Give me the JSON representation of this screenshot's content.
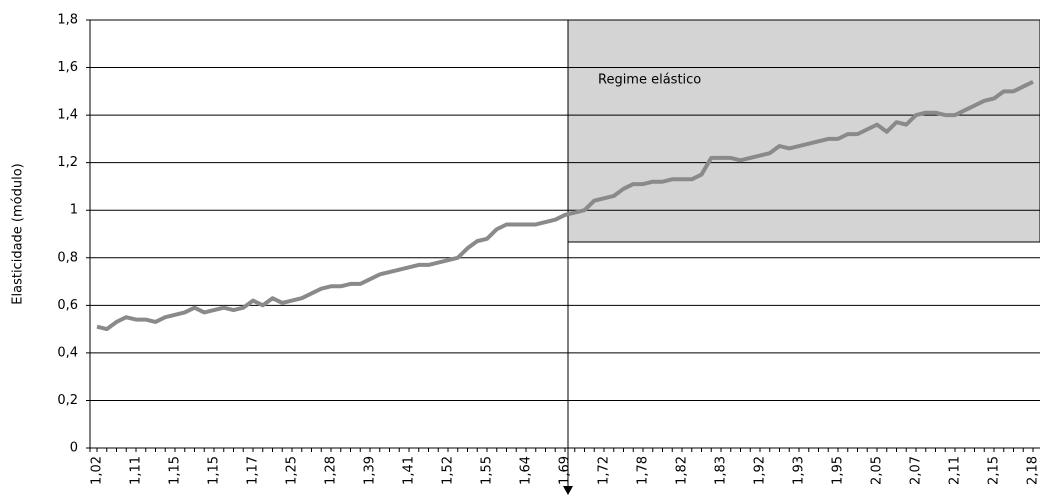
{
  "chart_data": {
    "type": "line",
    "ylabel": "Elasticidade (módulo)",
    "annotation": "Regime elástico",
    "color": "#8a8a8a",
    "categories": [
      "1,02",
      null,
      null,
      null,
      "1,11",
      null,
      null,
      null,
      "1,15",
      null,
      null,
      null,
      "1,15",
      null,
      null,
      null,
      "1,17",
      null,
      null,
      null,
      "1,25",
      null,
      null,
      null,
      "1,28",
      null,
      null,
      null,
      "1,39",
      null,
      null,
      null,
      "1,41",
      null,
      null,
      null,
      "1,52",
      null,
      null,
      null,
      "1,55",
      null,
      null,
      null,
      "1,64",
      null,
      null,
      null,
      "1,69",
      null,
      null,
      null,
      "1,72",
      null,
      null,
      null,
      "1,78",
      null,
      null,
      null,
      "1,82",
      null,
      null,
      null,
      "1,83",
      null,
      null,
      null,
      "1,92",
      null,
      null,
      null,
      "1,93",
      null,
      null,
      null,
      "1,95",
      null,
      null,
      null,
      "2,05",
      null,
      null,
      null,
      "2,07",
      null,
      null,
      null,
      "2,11",
      null,
      null,
      null,
      "2,15",
      null,
      null,
      null,
      "2,18"
    ],
    "values": [
      0.51,
      0.5,
      0.53,
      0.55,
      0.54,
      0.54,
      0.53,
      0.55,
      0.56,
      0.57,
      0.59,
      0.57,
      0.58,
      0.59,
      0.58,
      0.59,
      0.62,
      0.6,
      0.63,
      0.61,
      0.62,
      0.63,
      0.65,
      0.67,
      0.68,
      0.68,
      0.69,
      0.69,
      0.71,
      0.73,
      0.74,
      0.75,
      0.76,
      0.77,
      0.77,
      0.78,
      0.79,
      0.8,
      0.84,
      0.87,
      0.88,
      0.92,
      0.94,
      0.94,
      0.94,
      0.94,
      0.95,
      0.96,
      0.98,
      0.99,
      1.0,
      1.04,
      1.05,
      1.06,
      1.09,
      1.11,
      1.11,
      1.12,
      1.12,
      1.13,
      1.13,
      1.13,
      1.15,
      1.22,
      1.22,
      1.22,
      1.21,
      1.22,
      1.23,
      1.24,
      1.27,
      1.26,
      1.27,
      1.28,
      1.29,
      1.3,
      1.3,
      1.32,
      1.32,
      1.34,
      1.36,
      1.33,
      1.37,
      1.36,
      1.4,
      1.41,
      1.41,
      1.4,
      1.4,
      1.42,
      1.44,
      1.46,
      1.47,
      1.5,
      1.5,
      1.52,
      1.54
    ],
    "ylim": [
      0,
      1.8
    ],
    "yticks": [
      0,
      {
        "value": 0.2,
        "label": "0,2"
      },
      {
        "value": 0.4,
        "label": "0,4"
      },
      {
        "value": 0.6,
        "label": "0,6"
      },
      {
        "value": 0.8,
        "label": "0,8"
      },
      1,
      {
        "value": 1.2,
        "label": "1,2"
      },
      {
        "value": 1.4,
        "label": "1,4"
      },
      {
        "value": 1.6,
        "label": "1,6"
      },
      {
        "value": 1.8,
        "label": "1,8"
      }
    ],
    "grid": true
  }
}
